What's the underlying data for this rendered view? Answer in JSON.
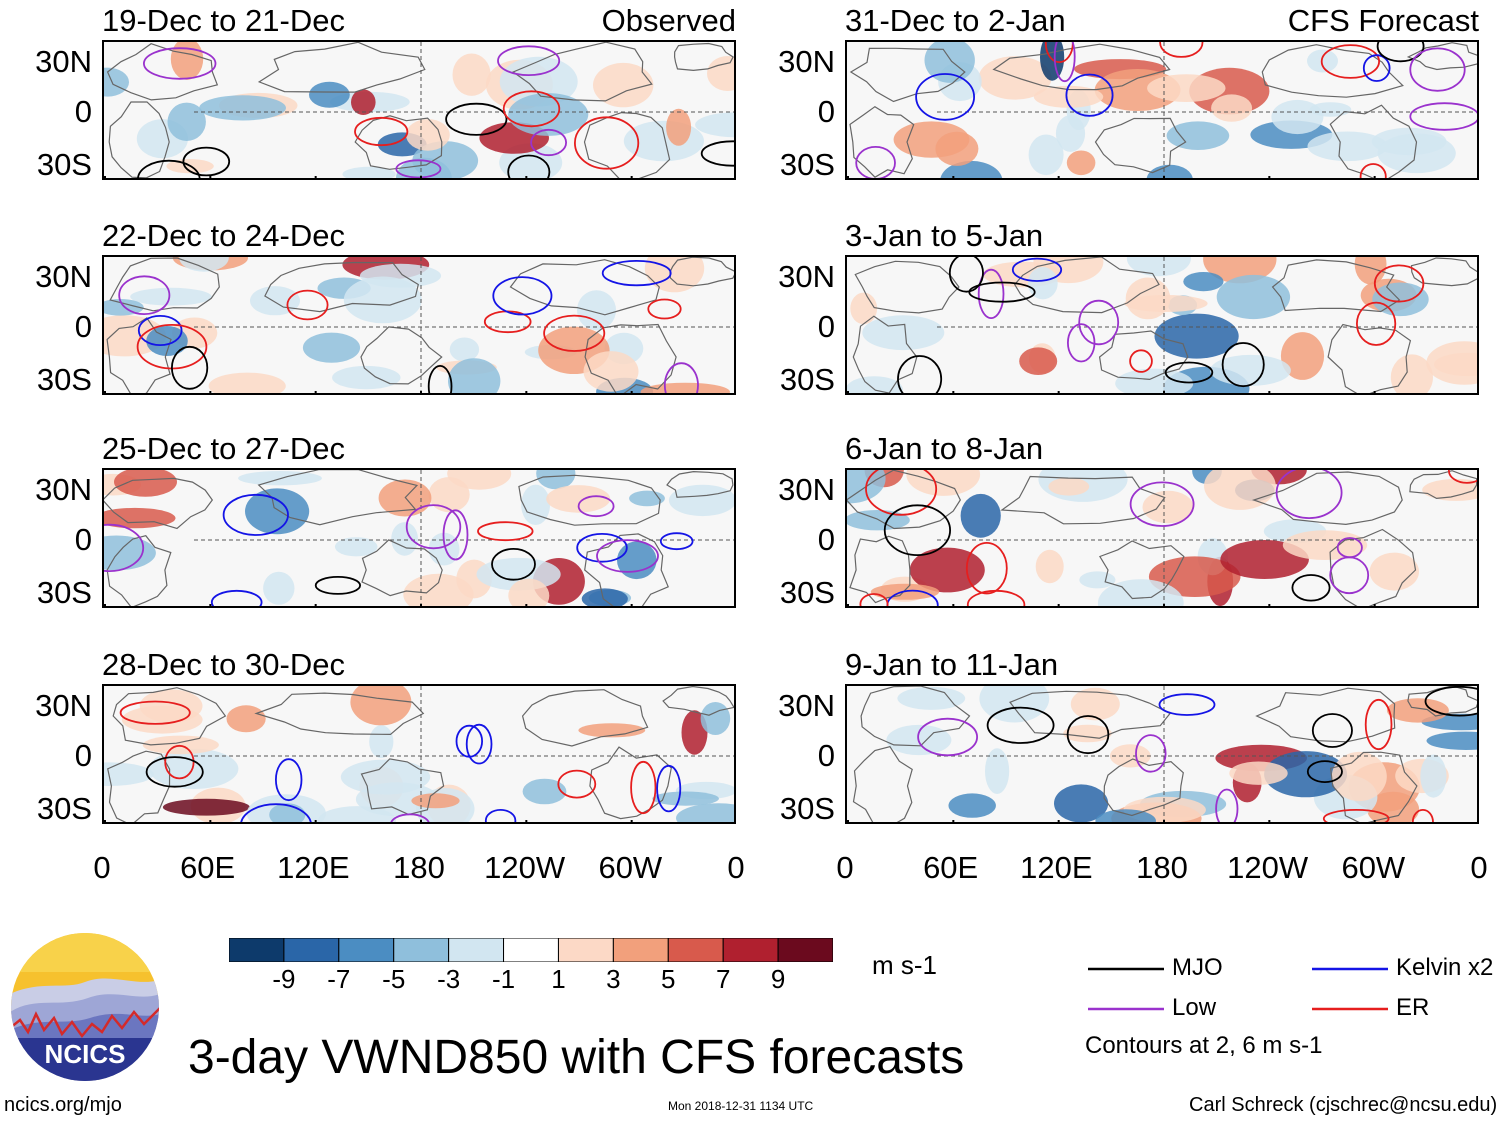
{
  "chart_data": {
    "type": "heatmap",
    "title": "3-day VWND850 with CFS forecasts",
    "units": "m s-1",
    "variable": "VWND850",
    "columns": [
      {
        "tag": "Observed",
        "panels": [
          "19-Dec to 21-Dec",
          "22-Dec to 24-Dec",
          "25-Dec to 27-Dec",
          "28-Dec to 30-Dec"
        ]
      },
      {
        "tag": "CFS Forecast",
        "panels": [
          "31-Dec to 2-Jan",
          "3-Jan to 5-Jan",
          "6-Jan to 8-Jan",
          "9-Jan to 11-Jan"
        ]
      }
    ],
    "y_ticks": [
      "30N",
      "0",
      "30S"
    ],
    "x_ticks": [
      "0",
      "60E",
      "120E",
      "180",
      "120W",
      "60W",
      "0"
    ],
    "colorbar": {
      "labels": [
        "-9",
        "-7",
        "-5",
        "-3",
        "-1",
        "1",
        "3",
        "5",
        "7",
        "9"
      ],
      "colors": [
        "#0d3a6b",
        "#2a66a8",
        "#4b8dc2",
        "#8fbfdc",
        "#d2e6f1",
        "#ffffff",
        "#fcd9c6",
        "#f2a07c",
        "#d85a4c",
        "#b0202f",
        "#6b0a1e"
      ]
    },
    "legend": [
      {
        "name": "MJO",
        "color": "#000000"
      },
      {
        "name": "Kelvin x2",
        "color": "#1414e6"
      },
      {
        "name": "Low",
        "color": "#9a32cd"
      },
      {
        "name": "ER",
        "color": "#e61e1e"
      }
    ],
    "contour_note": "Contours at 2, 6 m s-1"
  },
  "footer": {
    "logo_text": "NCICS",
    "site": "ncics.org/mjo",
    "timestamp": "Mon 2018-12-31 1134 UTC",
    "credit": "Carl Schreck (cjschrec@ncsu.edu)"
  }
}
